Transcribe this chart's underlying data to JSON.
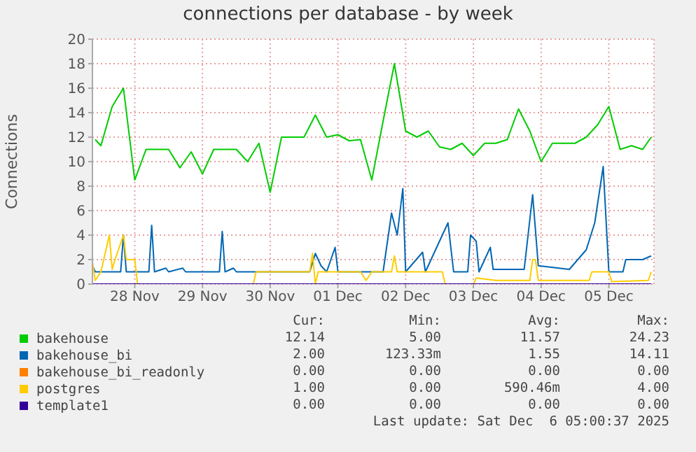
{
  "chart_data": {
    "type": "line",
    "title": "connections per database - by week",
    "ylabel": "Connections",
    "xlim": [
      "2025-11-27T21:00",
      "2025-12-06T04:00"
    ],
    "xticks": [
      {
        "value": "2025-11-28T12:00",
        "label": "28 Nov"
      },
      {
        "value": "2025-11-29T12:00",
        "label": "29 Nov"
      },
      {
        "value": "2025-11-30T12:00",
        "label": "30 Nov"
      },
      {
        "value": "2025-12-01T12:00",
        "label": "01 Dec"
      },
      {
        "value": "2025-12-02T12:00",
        "label": "02 Dec"
      },
      {
        "value": "2025-12-03T12:00",
        "label": "03 Dec"
      },
      {
        "value": "2025-12-04T12:00",
        "label": "04 Dec"
      },
      {
        "value": "2025-12-05T12:00",
        "label": "05 Dec"
      }
    ],
    "ylim": [
      0,
      20
    ],
    "yticks": [
      0,
      2,
      4,
      6,
      8,
      10,
      12,
      14,
      16,
      18,
      20
    ],
    "grid": true,
    "legend": "bottom",
    "series": [
      {
        "name": "bakehouse",
        "color": "#00cc00",
        "x": [
          "2025-11-27T22:00",
          "2025-11-28T00:00",
          "2025-11-28T04:00",
          "2025-11-28T08:00",
          "2025-11-28T12:00",
          "2025-11-28T16:00",
          "2025-11-28T20:00",
          "2025-11-29T00:00",
          "2025-11-29T04:00",
          "2025-11-29T08:00",
          "2025-11-29T12:00",
          "2025-11-29T16:00",
          "2025-11-29T20:00",
          "2025-11-30T00:00",
          "2025-11-30T04:00",
          "2025-11-30T08:00",
          "2025-11-30T12:00",
          "2025-11-30T16:00",
          "2025-11-30T20:00",
          "2025-12-01T00:00",
          "2025-12-01T04:00",
          "2025-12-01T08:00",
          "2025-12-01T12:00",
          "2025-12-01T16:00",
          "2025-12-01T20:00",
          "2025-12-02T00:00",
          "2025-12-02T04:00",
          "2025-12-02T08:00",
          "2025-12-02T12:00",
          "2025-12-02T16:00",
          "2025-12-02T20:00",
          "2025-12-03T00:00",
          "2025-12-03T04:00",
          "2025-12-03T08:00",
          "2025-12-03T12:00",
          "2025-12-03T16:00",
          "2025-12-03T20:00",
          "2025-12-04T00:00",
          "2025-12-04T04:00",
          "2025-12-04T08:00",
          "2025-12-04T12:00",
          "2025-12-04T16:00",
          "2025-12-04T20:00",
          "2025-12-05T00:00",
          "2025-12-05T04:00",
          "2025-12-05T08:00",
          "2025-12-05T12:00",
          "2025-12-05T16:00",
          "2025-12-05T20:00",
          "2025-12-06T00:00",
          "2025-12-06T03:00"
        ],
        "values": [
          11.8,
          11.3,
          14.5,
          16,
          8.5,
          11,
          11,
          11,
          9.5,
          10.8,
          9,
          11,
          11,
          11,
          10,
          11.5,
          7.5,
          12,
          12,
          12,
          13.8,
          12,
          12.2,
          11.7,
          11.8,
          8.5,
          13.3,
          18,
          12.5,
          12,
          12.5,
          11.2,
          11,
          11.5,
          10.5,
          11.5,
          11.5,
          11.8,
          14.3,
          12.5,
          10,
          11.5,
          11.5,
          11.5,
          12,
          13,
          14.5,
          11,
          11.3,
          11,
          12
        ]
      },
      {
        "name": "bakehouse_bi",
        "color": "#0066b3",
        "x": [
          "2025-11-27T21:00",
          "2025-11-27T22:00",
          "2025-11-28T07:00",
          "2025-11-28T08:00",
          "2025-11-28T09:00",
          "2025-11-28T17:00",
          "2025-11-28T18:00",
          "2025-11-28T19:00",
          "2025-11-28T23:00",
          "2025-11-29T00:00",
          "2025-11-29T05:00",
          "2025-11-29T06:00",
          "2025-11-29T18:00",
          "2025-11-29T19:00",
          "2025-11-29T20:00",
          "2025-11-29T23:00",
          "2025-11-30T00:00",
          "2025-12-01T02:00",
          "2025-12-01T04:00",
          "2025-12-01T06:00",
          "2025-12-01T08:00",
          "2025-12-01T11:00",
          "2025-12-01T12:00",
          "2025-12-02T04:00",
          "2025-12-02T07:00",
          "2025-12-02T09:00",
          "2025-12-02T11:00",
          "2025-12-02T12:00",
          "2025-12-02T18:00",
          "2025-12-02T19:00",
          "2025-12-03T03:00",
          "2025-12-03T05:00",
          "2025-12-03T10:00",
          "2025-12-03T11:00",
          "2025-12-03T13:00",
          "2025-12-03T14:00",
          "2025-12-03T18:00",
          "2025-12-03T19:00",
          "2025-12-04T06:00",
          "2025-12-04T09:00",
          "2025-12-04T11:00",
          "2025-12-04T22:00",
          "2025-12-05T04:00",
          "2025-12-05T07:00",
          "2025-12-05T10:00",
          "2025-12-05T12:00",
          "2025-12-05T17:00",
          "2025-12-05T18:00",
          "2025-12-06T00:00",
          "2025-12-06T03:00"
        ],
        "values": [
          1.5,
          1,
          1,
          4,
          1,
          1,
          4.8,
          1,
          1.3,
          1,
          1.3,
          1,
          1,
          4.3,
          1,
          1.3,
          1,
          1,
          2.5,
          1.5,
          1,
          3,
          1,
          1,
          5.8,
          4,
          7.8,
          1,
          2.6,
          1,
          5,
          1,
          1,
          4,
          3.5,
          1,
          3,
          1.2,
          1.2,
          7.3,
          1.5,
          1.2,
          2.8,
          5,
          9.6,
          1,
          1,
          2,
          2,
          2.3
        ]
      },
      {
        "name": "bakehouse_bi_readonly",
        "color": "#ff8000"
      },
      {
        "name": "postgres",
        "color": "#ffcc00",
        "x": [
          "2025-11-27T21:00",
          "2025-11-27T22:00",
          "2025-11-28T00:00",
          "2025-11-28T03:00",
          "2025-11-28T04:00",
          "2025-11-28T05:00",
          "2025-11-28T08:00",
          "2025-11-28T09:00",
          "2025-11-28T12:00",
          "2025-11-28T13:00",
          "2025-11-30T06:00",
          "2025-11-30T07:00",
          "2025-12-01T02:00",
          "2025-12-01T03:00",
          "2025-12-01T04:00",
          "2025-12-01T05:00",
          "2025-12-01T20:00",
          "2025-12-01T22:00",
          "2025-12-02T00:00",
          "2025-12-02T07:00",
          "2025-12-02T08:00",
          "2025-12-02T09:00",
          "2025-12-03T01:00",
          "2025-12-03T02:00",
          "2025-12-03T12:00",
          "2025-12-03T13:00",
          "2025-12-03T20:00",
          "2025-12-04T08:00",
          "2025-12-04T09:00",
          "2025-12-04T10:00",
          "2025-12-04T11:00",
          "2025-12-05T05:00",
          "2025-12-05T06:00",
          "2025-12-05T12:00",
          "2025-12-05T13:00",
          "2025-12-06T02:00",
          "2025-12-06T03:00"
        ],
        "values": [
          1.8,
          0.3,
          1,
          4,
          1.2,
          2,
          4,
          2,
          2,
          0,
          0,
          1,
          1,
          2.5,
          0,
          1,
          1,
          0.3,
          1,
          1,
          2.3,
          1,
          1,
          0,
          0,
          0.5,
          0.3,
          0.3,
          2,
          2,
          0.3,
          0.3,
          1,
          1,
          0.2,
          0.3,
          1
        ]
      },
      {
        "name": "template1",
        "color": "#330099",
        "x": [
          "2025-11-27T21:00",
          "2025-12-06T03:00"
        ],
        "values": [
          0,
          0
        ]
      }
    ],
    "annotations": [
      "Cur:",
      "Min:",
      "Avg:",
      "Max:",
      "12.14",
      "5.00",
      "11.57",
      "24.23",
      "2.00",
      "123.33m",
      "1.55",
      "14.11",
      "0.00",
      "0.00",
      "0.00",
      "0.00",
      "1.00",
      "0.00",
      "590.46m",
      "4.00",
      "0.00",
      "0.00",
      "0.00",
      "0.00",
      "Last update: Sat Dec  6 05:00:37 2025"
    ]
  }
}
